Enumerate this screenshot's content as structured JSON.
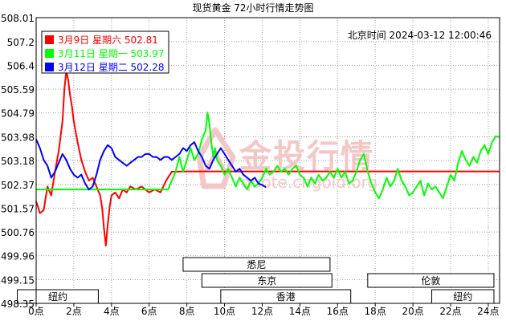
{
  "title": "现货黄金 72小时行情走势图",
  "timestamp": "北京时间 2024-03-12 12:00:46",
  "watermark": {
    "brand": "金投行情",
    "url": "quote.cngold.org"
  },
  "colors": {
    "red": "#ff0000",
    "green": "#00ff00",
    "blue": "#0000ff",
    "grid": "#9a9a9a",
    "watermark": "#f4c7c7"
  },
  "markets": [
    {
      "name": "悉尼",
      "start_h": 7.8,
      "end_h": 15.6,
      "row": 1
    },
    {
      "name": "东京",
      "start_h": 8.8,
      "end_h": 15.7,
      "row": 2
    },
    {
      "name": "伦敦",
      "start_h": 17.6,
      "end_h": 24.3,
      "row": 2
    },
    {
      "name": "香港",
      "start_h": 9.8,
      "end_h": 16.7,
      "row": 3
    },
    {
      "name": "纽约",
      "start_h": -1.0,
      "end_h": 3.3,
      "row": 3
    },
    {
      "name": "纽约",
      "start_h": 21.0,
      "end_h": 24.3,
      "row": 3
    }
  ],
  "chart_data": {
    "type": "line",
    "title": "现货黄金 72小时行情走势图",
    "xlabel": "",
    "ylabel": "",
    "x_ticks": [
      "0点",
      "2点",
      "4点",
      "6点",
      "8点",
      "10点",
      "12点",
      "14点",
      "16点",
      "18点",
      "20点",
      "22点",
      "24点"
    ],
    "y_ticks": [
      508.01,
      507.2,
      506.4,
      505.59,
      504.79,
      503.98,
      503.18,
      502.37,
      501.57,
      500.76,
      499.96,
      499.15,
      498.35
    ],
    "xlim": [
      0,
      24.6
    ],
    "ylim": [
      498.35,
      508.01
    ],
    "grid": true,
    "legend_position": "top-left",
    "series": [
      {
        "name": "3月9日 星期六",
        "last": "502.81",
        "color": "#ff0000",
        "points": [
          [
            0.0,
            501.8
          ],
          [
            0.2,
            501.4
          ],
          [
            0.4,
            501.5
          ],
          [
            0.6,
            502.3
          ],
          [
            0.8,
            502.0
          ],
          [
            1.0,
            502.8
          ],
          [
            1.2,
            503.5
          ],
          [
            1.4,
            504.5
          ],
          [
            1.5,
            505.6
          ],
          [
            1.6,
            506.2
          ],
          [
            1.7,
            505.9
          ],
          [
            1.8,
            505.4
          ],
          [
            1.9,
            505.0
          ],
          [
            2.0,
            504.5
          ],
          [
            2.2,
            503.8
          ],
          [
            2.4,
            503.2
          ],
          [
            2.6,
            502.8
          ],
          [
            2.8,
            502.5
          ],
          [
            3.0,
            502.6
          ],
          [
            3.2,
            502.3
          ],
          [
            3.4,
            502.0
          ],
          [
            3.5,
            501.6
          ],
          [
            3.6,
            500.9
          ],
          [
            3.7,
            500.3
          ],
          [
            3.8,
            501.0
          ],
          [
            3.9,
            501.6
          ],
          [
            4.0,
            502.0
          ],
          [
            4.2,
            502.1
          ],
          [
            4.4,
            501.9
          ],
          [
            4.6,
            502.2
          ],
          [
            4.8,
            502.1
          ],
          [
            5.0,
            502.3
          ],
          [
            5.3,
            502.2
          ],
          [
            5.6,
            502.3
          ],
          [
            6.0,
            502.1
          ],
          [
            6.3,
            502.2
          ],
          [
            6.6,
            502.1
          ],
          [
            6.9,
            502.5
          ],
          [
            7.2,
            502.8
          ],
          [
            8.0,
            502.81
          ],
          [
            10.0,
            502.81
          ],
          [
            14.0,
            502.81
          ],
          [
            18.0,
            502.81
          ],
          [
            22.0,
            502.81
          ],
          [
            24.6,
            502.81
          ]
        ]
      },
      {
        "name": "3月11日 星期一",
        "last": "503.97",
        "color": "#00ff00",
        "points": [
          [
            0.0,
            502.2
          ],
          [
            2.0,
            502.2
          ],
          [
            3.0,
            502.2
          ],
          [
            4.0,
            502.2
          ],
          [
            5.0,
            502.2
          ],
          [
            6.0,
            502.2
          ],
          [
            7.0,
            502.2
          ],
          [
            7.2,
            502.5
          ],
          [
            7.4,
            502.8
          ],
          [
            7.6,
            503.3
          ],
          [
            7.8,
            502.8
          ],
          [
            8.0,
            503.2
          ],
          [
            8.2,
            503.6
          ],
          [
            8.4,
            503.2
          ],
          [
            8.6,
            503.4
          ],
          [
            8.8,
            503.9
          ],
          [
            9.0,
            504.2
          ],
          [
            9.1,
            504.8
          ],
          [
            9.2,
            504.4
          ],
          [
            9.3,
            503.8
          ],
          [
            9.4,
            503.3
          ],
          [
            9.5,
            503.6
          ],
          [
            9.6,
            503.2
          ],
          [
            9.8,
            503.0
          ],
          [
            10.0,
            502.7
          ],
          [
            10.2,
            502.9
          ],
          [
            10.4,
            502.6
          ],
          [
            10.6,
            502.3
          ],
          [
            10.8,
            502.6
          ],
          [
            11.0,
            502.4
          ],
          [
            11.2,
            502.2
          ],
          [
            11.4,
            502.5
          ],
          [
            11.6,
            502.3
          ],
          [
            11.8,
            502.4
          ],
          [
            12.0,
            502.6
          ],
          [
            12.2,
            502.9
          ],
          [
            12.4,
            502.7
          ],
          [
            12.6,
            502.8
          ],
          [
            12.8,
            503.0
          ],
          [
            13.0,
            502.8
          ],
          [
            13.2,
            502.9
          ],
          [
            13.4,
            502.7
          ],
          [
            13.6,
            502.9
          ],
          [
            13.8,
            503.0
          ],
          [
            14.0,
            502.7
          ],
          [
            14.2,
            502.6
          ],
          [
            14.4,
            502.3
          ],
          [
            14.6,
            502.6
          ],
          [
            14.8,
            502.4
          ],
          [
            15.0,
            502.7
          ],
          [
            15.2,
            502.5
          ],
          [
            15.4,
            502.6
          ],
          [
            15.6,
            502.8
          ],
          [
            15.8,
            502.6
          ],
          [
            16.0,
            502.9
          ],
          [
            16.2,
            502.6
          ],
          [
            16.4,
            502.8
          ],
          [
            16.6,
            502.4
          ],
          [
            16.8,
            502.5
          ],
          [
            17.0,
            502.8
          ],
          [
            17.2,
            503.2
          ],
          [
            17.4,
            503.4
          ],
          [
            17.6,
            502.8
          ],
          [
            17.8,
            502.4
          ],
          [
            18.0,
            502.1
          ],
          [
            18.2,
            501.9
          ],
          [
            18.4,
            502.2
          ],
          [
            18.6,
            502.6
          ],
          [
            18.8,
            502.3
          ],
          [
            19.0,
            502.5
          ],
          [
            19.2,
            502.9
          ],
          [
            19.4,
            502.5
          ],
          [
            19.6,
            502.3
          ],
          [
            19.8,
            502.0
          ],
          [
            20.0,
            502.1
          ],
          [
            20.2,
            502.3
          ],
          [
            20.4,
            502.5
          ],
          [
            20.6,
            502.0
          ],
          [
            20.8,
            502.4
          ],
          [
            21.0,
            502.2
          ],
          [
            21.2,
            502.3
          ],
          [
            21.4,
            502.1
          ],
          [
            21.6,
            501.9
          ],
          [
            21.8,
            502.3
          ],
          [
            22.0,
            502.7
          ],
          [
            22.2,
            502.5
          ],
          [
            22.4,
            503.1
          ],
          [
            22.6,
            503.5
          ],
          [
            22.8,
            503.2
          ],
          [
            23.0,
            503.0
          ],
          [
            23.2,
            503.3
          ],
          [
            23.4,
            503.1
          ],
          [
            23.6,
            503.5
          ],
          [
            23.8,
            503.7
          ],
          [
            24.0,
            503.4
          ],
          [
            24.2,
            503.8
          ],
          [
            24.4,
            504.0
          ],
          [
            24.6,
            503.97
          ]
        ]
      },
      {
        "name": "3月12日 星期二",
        "last": "502.28",
        "color": "#0000ff",
        "points": [
          [
            0.0,
            503.9
          ],
          [
            0.2,
            503.6
          ],
          [
            0.4,
            503.2
          ],
          [
            0.6,
            503.0
          ],
          [
            0.8,
            502.6
          ],
          [
            1.0,
            502.8
          ],
          [
            1.2,
            503.1
          ],
          [
            1.4,
            503.4
          ],
          [
            1.6,
            503.2
          ],
          [
            1.8,
            502.9
          ],
          [
            2.0,
            502.7
          ],
          [
            2.2,
            502.6
          ],
          [
            2.4,
            502.7
          ],
          [
            2.6,
            502.4
          ],
          [
            2.8,
            502.2
          ],
          [
            3.0,
            502.3
          ],
          [
            3.2,
            502.7
          ],
          [
            3.4,
            503.2
          ],
          [
            3.6,
            503.5
          ],
          [
            3.8,
            503.7
          ],
          [
            4.0,
            503.6
          ],
          [
            4.2,
            503.3
          ],
          [
            4.4,
            503.2
          ],
          [
            4.6,
            503.1
          ],
          [
            4.8,
            503.0
          ],
          [
            5.0,
            503.1
          ],
          [
            5.2,
            503.2
          ],
          [
            5.4,
            503.3
          ],
          [
            5.6,
            503.3
          ],
          [
            5.8,
            503.4
          ],
          [
            6.0,
            503.4
          ],
          [
            6.2,
            503.3
          ],
          [
            6.4,
            503.3
          ],
          [
            6.6,
            503.2
          ],
          [
            6.8,
            503.3
          ],
          [
            7.0,
            503.3
          ],
          [
            7.2,
            503.2
          ],
          [
            7.4,
            503.3
          ],
          [
            7.6,
            503.4
          ],
          [
            7.8,
            503.6
          ],
          [
            8.0,
            503.5
          ],
          [
            8.2,
            503.7
          ],
          [
            8.4,
            503.8
          ],
          [
            8.6,
            503.5
          ],
          [
            8.8,
            503.3
          ],
          [
            9.0,
            503.0
          ],
          [
            9.2,
            502.9
          ],
          [
            9.4,
            503.2
          ],
          [
            9.6,
            503.4
          ],
          [
            9.8,
            503.6
          ],
          [
            10.0,
            503.4
          ],
          [
            10.2,
            503.2
          ],
          [
            10.4,
            503.0
          ],
          [
            10.6,
            502.8
          ],
          [
            10.8,
            502.9
          ],
          [
            11.0,
            502.7
          ],
          [
            11.2,
            502.6
          ],
          [
            11.4,
            502.5
          ],
          [
            11.6,
            502.6
          ],
          [
            11.8,
            502.4
          ],
          [
            12.0,
            502.35
          ],
          [
            12.2,
            502.28
          ]
        ]
      }
    ]
  }
}
